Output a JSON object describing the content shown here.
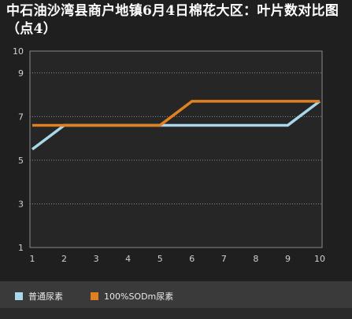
{
  "chart_data": {
    "type": "line",
    "title": "中石油沙湾县商户地镇6月4日棉花大区：叶片数对比图（点4）",
    "x": [
      1,
      2,
      3,
      4,
      5,
      6,
      7,
      8,
      9,
      10
    ],
    "series": [
      {
        "name": "普通尿素",
        "values": [
          5.5,
          6.6,
          6.6,
          6.6,
          6.6,
          6.6,
          6.6,
          6.6,
          6.6,
          7.7
        ],
        "color": "#a8d8ea"
      },
      {
        "name": "100%SODm尿素",
        "values": [
          6.6,
          6.6,
          6.6,
          6.6,
          6.6,
          7.7,
          7.7,
          7.7,
          7.7,
          7.7
        ],
        "color": "#e08020"
      }
    ],
    "ylim": [
      1,
      10
    ],
    "yticks": [
      "1",
      "3",
      "5",
      "7",
      "9",
      "10"
    ],
    "xticks": [
      "1",
      "2",
      "3",
      "4",
      "5",
      "6",
      "7",
      "8",
      "9",
      "10"
    ],
    "grid": true,
    "legend": "bottom"
  }
}
